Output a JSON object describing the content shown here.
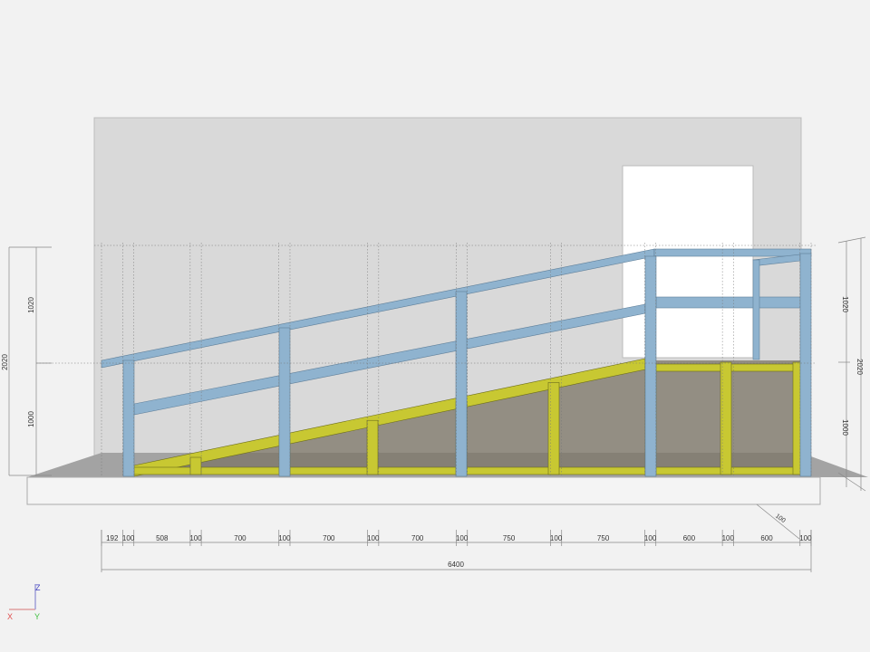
{
  "dimensions": {
    "bottom_segments": [
      "192",
      "100",
      "508",
      "100",
      "700",
      "100",
      "700",
      "100",
      "700",
      "100",
      "750",
      "100",
      "750",
      "100",
      "600",
      "100",
      "600",
      "100"
    ],
    "bottom_segment_values": [
      192,
      100,
      508,
      100,
      700,
      100,
      700,
      100,
      700,
      100,
      750,
      100,
      750,
      100,
      600,
      100,
      600,
      100
    ],
    "total_length": "6400",
    "depth": "100",
    "left": {
      "total": "2020",
      "upper": "1020",
      "lower": "1000"
    },
    "right": {
      "total": "2020",
      "upper": "1020",
      "lower": "1000"
    }
  },
  "axes": {
    "x": "X",
    "y": "Y",
    "z": "Z"
  },
  "colors": {
    "background": "#f2f2f2",
    "wall": "#d9d9d9",
    "door": "#ffffff",
    "handrail": "#8fb3cf",
    "frame": "#c8c832",
    "floor": "#9a9a9a",
    "x_axis": "#e05050",
    "y_axis": "#40c040",
    "z_axis": "#4040c0"
  }
}
